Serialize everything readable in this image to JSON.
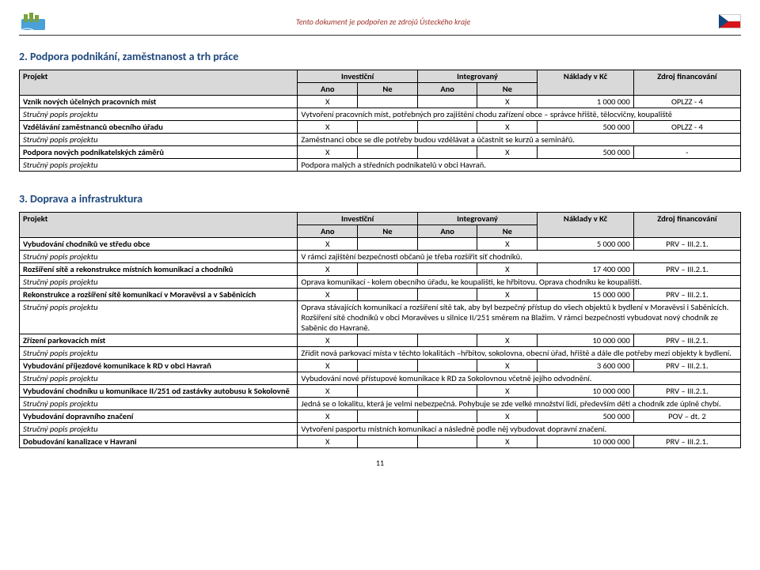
{
  "header": {
    "subtitle": "Tento dokument je podpořen ze zdrojů Ústeckého kraje"
  },
  "section2": {
    "title": "2. Podpora podnikání, zaměstnanost a trh práce",
    "colHeaders": {
      "project": "Projekt",
      "invest": "Investiční",
      "integr": "Integrovaný",
      "ano": "Ano",
      "ne": "Ne",
      "cost": "Náklady v Kč",
      "src": "Zdroj financování"
    },
    "descLabel": "Stručný popis projektu",
    "rows": [
      {
        "name": "Vznik nových účelných pracovních míst",
        "inv_a": "X",
        "inv_n": "",
        "int_a": "",
        "int_n": "X",
        "cost": "1 000 000",
        "src": "OPLZZ - 4",
        "desc": "Vytvoření pracovních míst, potřebných pro zajištění chodu zařízení obce – správce hřiště, tělocvičny, koupaliště"
      },
      {
        "name": "Vzdělávání zaměstnanců obecního úřadu",
        "inv_a": "X",
        "inv_n": "",
        "int_a": "",
        "int_n": "X",
        "cost": "500 000",
        "src": "OPLZZ - 4",
        "desc": "Zaměstnanci obce se dle potřeby budou vzdělávat a účastnit se kurzů a seminářů."
      },
      {
        "name": "Podpora nových podnikatelských záměrů",
        "inv_a": "X",
        "inv_n": "",
        "int_a": "",
        "int_n": "X",
        "cost": "500 000",
        "src": "-",
        "desc": "Podpora malých a středních podnikatelů v obci Havraň."
      }
    ]
  },
  "section3": {
    "title": "3. Doprava a infrastruktura",
    "colHeaders": {
      "project": "Projekt",
      "invest": "Investiční",
      "integr": "Integrovaný",
      "ano": "Ano",
      "ne": "Ne",
      "cost": "Náklady v Kč",
      "src": "Zdroj financování"
    },
    "descLabel": "Stručný popis projektu",
    "rows": [
      {
        "name": "Vybudování chodníků ve středu obce",
        "inv_a": "X",
        "inv_n": "",
        "int_a": "",
        "int_n": "X",
        "cost": "5 000 000",
        "src": "PRV – III.2.1.",
        "desc": "V rámci zajištění bezpečnosti občanů je třeba rozšířit síť chodníků."
      },
      {
        "name": "Rozšíření sítě a rekonstrukce místních komunikací a chodníků",
        "inv_a": "X",
        "inv_n": "",
        "int_a": "",
        "int_n": "X",
        "cost": "17 400 000",
        "src": "PRV – III.2.1.",
        "desc": "Oprava komunikací - kolem obecního úřadu, ke koupališti, ke hřbitovu. Oprava chodníku ke koupališti."
      },
      {
        "name": "Rekonstrukce a rozšíření sítě komunikací v Moravěvsi a v Saběnicích",
        "inv_a": "X",
        "inv_n": "",
        "int_a": "",
        "int_n": "X",
        "cost": "15 000 000",
        "src": "PRV – III.2.1.",
        "desc": "Oprava stávajících komunikací a rozšíření sítě tak, aby byl bezpečný přístup do všech objektů k bydlení v Moravěvsi i Saběnicích. Rozšíření sítě chodníků v obci Moravěves u silnice II/251 směrem na Blažim. V rámci bezpečnosti vybudovat nový chodník ze Saběnic do Havraně."
      },
      {
        "name": "Zřízení parkovacích míst",
        "inv_a": "X",
        "inv_n": "",
        "int_a": "",
        "int_n": "X",
        "cost": "10 000 000",
        "src": "PRV – III.2.1.",
        "desc": "Zřídit nová parkovací místa v těchto lokalitách –hřbitov, sokolovna, obecní úřad, hřiště a dále dle potřeby mezi objekty k bydlení."
      },
      {
        "name": "Vybudování příjezdové komunikace k RD v obci Havraň",
        "inv_a": "X",
        "inv_n": "",
        "int_a": "",
        "int_n": "X",
        "cost": "3 600 000",
        "src": "PRV – III.2.1.",
        "desc": "Vybudování nové přístupové komunikace k RD za Sokolovnou včetně jejího odvodnění."
      },
      {
        "name": "Vybudování chodníku u komunikace II/251 od zastávky autobusu k Sokolovně",
        "inv_a": "X",
        "inv_n": "",
        "int_a": "",
        "int_n": "X",
        "cost": "10 000 000",
        "src": "PRV – III.2.1.",
        "desc": "Jedná se o lokalitu, která je velmi nebezpečná. Pohybuje se zde velké množství lidí, především dětí a chodník zde úplně chybí."
      },
      {
        "name": "Vybudování dopravního značení",
        "inv_a": "X",
        "inv_n": "",
        "int_a": "",
        "int_n": "X",
        "cost": "500 000",
        "src": "POV – dt. 2",
        "desc": "Vytvoření pasportu místních komunikací a následně podle něj vybudovat dopravní značení."
      },
      {
        "name": "Dobudování kanalizace v Havrani",
        "inv_a": "X",
        "inv_n": "",
        "int_a": "",
        "int_n": "X",
        "cost": "10 000 000",
        "src": "PRV – III.2.1.",
        "desc": null
      }
    ]
  },
  "pageNumber": "11"
}
